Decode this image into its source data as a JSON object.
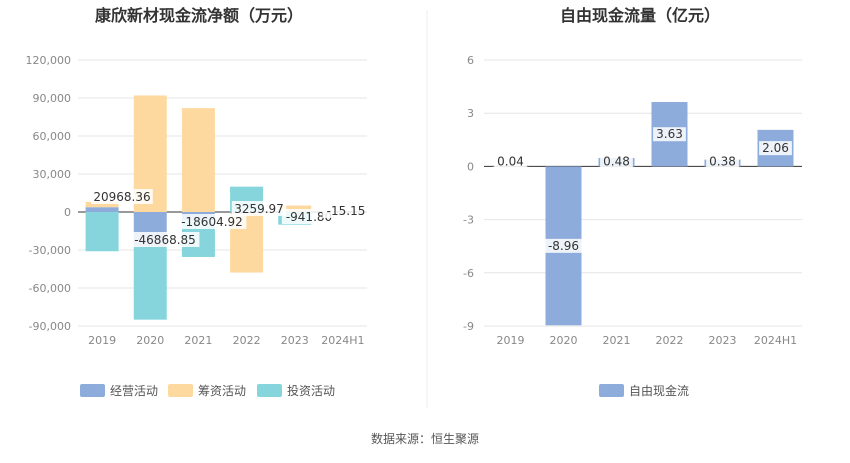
{
  "source_label": "数据来源：恒生聚源",
  "chart_data": [
    {
      "type": "bar",
      "title": "康欣新材现金流净额（万元）",
      "categories": [
        "2019",
        "2020",
        "2021",
        "2022",
        "2023",
        "2024H1"
      ],
      "y_ticks": [
        "120,000",
        "90,000",
        "60,000",
        "30,000",
        "0",
        "-30,000",
        "-60,000",
        "-90,000"
      ],
      "ylim": [
        -90000,
        120000
      ],
      "grid": true,
      "legend_position": "bottom",
      "series": [
        {
          "name": "经营活动",
          "color": "#8eacdb",
          "values": [
            3800,
            -27000,
            -6500,
            -800,
            500,
            0
          ]
        },
        {
          "name": "筹资活动",
          "color": "#fdd9a0",
          "values": [
            4200,
            92000,
            82000,
            -47000,
            4600,
            0
          ]
        },
        {
          "name": "投资活动",
          "color": "#86d5dd",
          "values": [
            -31000,
            -58000,
            -29000,
            20000,
            -10000,
            0
          ]
        }
      ],
      "net_labels": [
        "20968.36",
        "-46868.85",
        "-18604.92",
        "3259.97",
        "-941.80",
        "-15.15"
      ]
    },
    {
      "type": "bar",
      "title": "自由现金流量（亿元）",
      "categories": [
        "2019",
        "2020",
        "2021",
        "2022",
        "2023",
        "2024H1"
      ],
      "y_ticks": [
        "6",
        "3",
        "0",
        "-3",
        "-6",
        "-9"
      ],
      "ylim": [
        -9,
        6
      ],
      "grid": true,
      "legend_position": "bottom",
      "series": [
        {
          "name": "自由现金流",
          "color": "#8eacdb",
          "values": [
            0.04,
            -8.96,
            0.48,
            3.63,
            0.38,
            2.06
          ]
        }
      ],
      "value_labels": [
        "0.04",
        "-8.96",
        "0.48",
        "3.63",
        "0.38",
        "2.06"
      ]
    }
  ]
}
